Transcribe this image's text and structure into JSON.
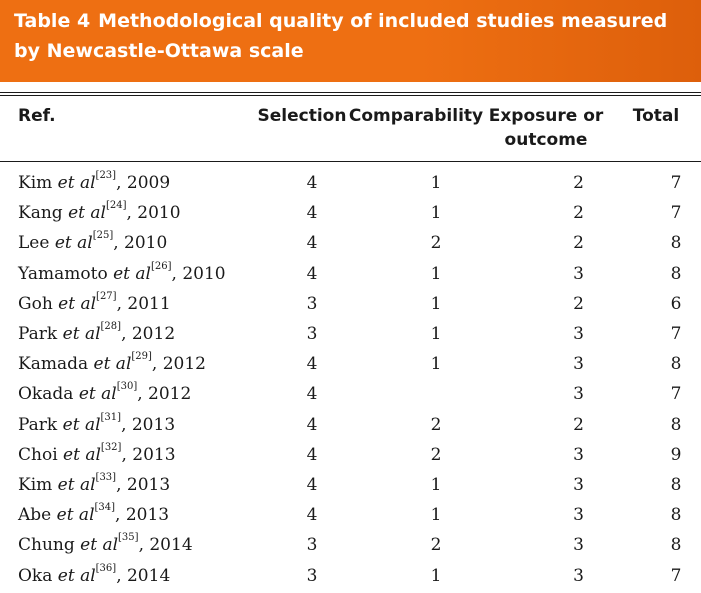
{
  "title": {
    "label": "Table 4",
    "text": "Methodological quality of included studies measured by Newcastle-Ottawa scale"
  },
  "headers": {
    "ref": "Ref.",
    "selection": "Selection",
    "comparability": "Comparability",
    "exposure_line1": "Exposure or",
    "exposure_line2": "outcome",
    "total": "Total"
  },
  "rows": [
    {
      "author": "Kim",
      "etal": "et al",
      "ref_num": "[23]",
      "year": ", 2009",
      "selection": "4",
      "comparability": "1",
      "exposure": "2",
      "total": "7"
    },
    {
      "author": "Kang",
      "etal": "et al",
      "ref_num": "[24]",
      "year": ", 2010",
      "selection": "4",
      "comparability": "1",
      "exposure": "2",
      "total": "7"
    },
    {
      "author": "Lee",
      "etal": "et al",
      "ref_num": "[25]",
      "year": ", 2010",
      "selection": "4",
      "comparability": "2",
      "exposure": "2",
      "total": "8"
    },
    {
      "author": "Yamamoto",
      "etal": "et al",
      "ref_num": "[26]",
      "year": ", 2010",
      "selection": "4",
      "comparability": "1",
      "exposure": "3",
      "total": "8"
    },
    {
      "author": "Goh",
      "etal": "et al",
      "ref_num": "[27]",
      "year": ", 2011",
      "selection": "3",
      "comparability": "1",
      "exposure": "2",
      "total": "6"
    },
    {
      "author": "Park",
      "etal": "et al",
      "ref_num": "[28]",
      "year": ", 2012",
      "selection": "3",
      "comparability": "1",
      "exposure": "3",
      "total": "7"
    },
    {
      "author": "Kamada",
      "etal": "et al",
      "ref_num": "[29]",
      "year": ", 2012",
      "selection": "4",
      "comparability": "1",
      "exposure": "3",
      "total": "8"
    },
    {
      "author": "Okada",
      "etal": "et al",
      "ref_num": "[30]",
      "year": ", 2012",
      "selection": "4",
      "comparability": "",
      "exposure": "3",
      "total": "7"
    },
    {
      "author": "Park",
      "etal": "et al",
      "ref_num": "[31]",
      "year": ", 2013",
      "selection": "4",
      "comparability": "2",
      "exposure": "2",
      "total": "8"
    },
    {
      "author": "Choi",
      "etal": "et al",
      "ref_num": "[32]",
      "year": ", 2013",
      "selection": "4",
      "comparability": "2",
      "exposure": "3",
      "total": "9"
    },
    {
      "author": "Kim",
      "etal": "et al",
      "ref_num": "[33]",
      "year": ", 2013",
      "selection": "4",
      "comparability": "1",
      "exposure": "3",
      "total": "8"
    },
    {
      "author": "Abe",
      "etal": "et al",
      "ref_num": "[34]",
      "year": ", 2013",
      "selection": "4",
      "comparability": "1",
      "exposure": "3",
      "total": "8"
    },
    {
      "author": "Chung",
      "etal": "et al",
      "ref_num": "[35]",
      "year": ", 2014",
      "selection": "3",
      "comparability": "2",
      "exposure": "3",
      "total": "8"
    },
    {
      "author": "Oka",
      "etal": "et al",
      "ref_num": "[36]",
      "year": ", 2014",
      "selection": "3",
      "comparability": "1",
      "exposure": "3",
      "total": "7"
    }
  ]
}
